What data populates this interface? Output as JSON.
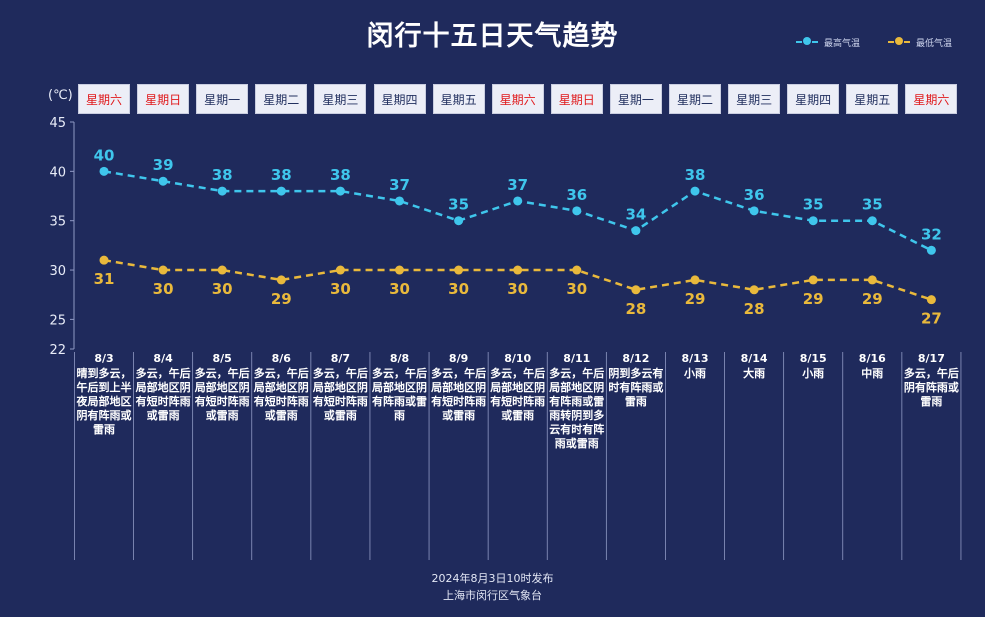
{
  "title": "闵行十五日天气趋势",
  "legend": [
    {
      "name": "最高气温",
      "color": "#3fc6ec"
    },
    {
      "name": "最低气温",
      "color": "#e9b93c"
    }
  ],
  "unit": "(℃)",
  "footer": {
    "issued": "2024年8月3日10时发布",
    "source": "上海市闵行区气象台"
  },
  "chart_data": {
    "type": "line",
    "title": "闵行十五日天气趋势",
    "x": [
      "8/3",
      "8/4",
      "8/5",
      "8/6",
      "8/7",
      "8/8",
      "8/9",
      "8/10",
      "8/11",
      "8/12",
      "8/13",
      "8/14",
      "8/15",
      "8/16",
      "8/17"
    ],
    "weekdays": [
      "星期六",
      "星期日",
      "星期一",
      "星期二",
      "星期三",
      "星期四",
      "星期五",
      "星期六",
      "星期日",
      "星期一",
      "星期二",
      "星期三",
      "星期四",
      "星期五",
      "星期六"
    ],
    "weekend": [
      true,
      true,
      false,
      false,
      false,
      false,
      false,
      true,
      true,
      false,
      false,
      false,
      false,
      false,
      true
    ],
    "weather": [
      "晴到多云，午后到上半夜局部地区阴有阵雨或雷雨",
      "多云，午后局部地区阴有短时阵雨或雷雨",
      "多云，午后局部地区阴有短时阵雨或雷雨",
      "多云，午后局部地区阴有短时阵雨或雷雨",
      "多云，午后局部地区阴有短时阵雨或雷雨",
      "多云，午后局部地区阴有阵雨或雷雨",
      "多云，午后局部地区阴有短时阵雨或雷雨",
      "多云，午后局部地区阴有短时阵雨或雷雨",
      "多云，午后局部地区阴有阵雨或雷雨转阴到多云有时有阵雨或雷雨",
      "阴到多云有时有阵雨或雷雨",
      "小雨",
      "大雨",
      "小雨",
      "中雨",
      "多云，午后阴有阵雨或雷雨"
    ],
    "series": [
      {
        "name": "最高气温",
        "color": "#3fc6ec",
        "values": [
          40,
          39,
          38,
          38,
          38,
          37,
          35,
          37,
          36,
          34,
          38,
          36,
          35,
          35,
          32
        ]
      },
      {
        "name": "最低气温",
        "color": "#e9b93c",
        "values": [
          31,
          30,
          30,
          29,
          30,
          30,
          30,
          30,
          30,
          28,
          29,
          28,
          29,
          29,
          27
        ]
      }
    ],
    "ylabel": "(℃)",
    "ylim": [
      22,
      45
    ],
    "yticks": [
      22,
      25,
      30,
      35,
      40,
      45
    ],
    "grid": false,
    "legend_position": "top-right"
  }
}
